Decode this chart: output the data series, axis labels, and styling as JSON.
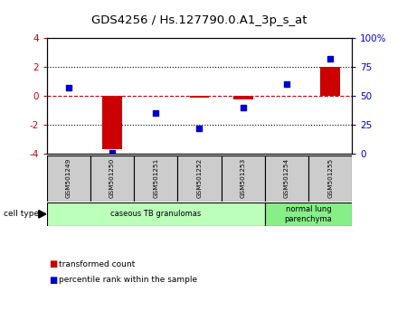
{
  "title": "GDS4256 / Hs.127790.0.A1_3p_s_at",
  "samples": [
    "GSM501249",
    "GSM501250",
    "GSM501251",
    "GSM501252",
    "GSM501253",
    "GSM501254",
    "GSM501255"
  ],
  "transformed_count": [
    0.04,
    -3.7,
    0.0,
    -0.12,
    -0.22,
    0.0,
    2.0
  ],
  "percentile_rank": [
    57,
    1,
    35,
    22,
    40,
    60,
    82
  ],
  "ylim_left": [
    -4,
    4
  ],
  "ylim_right": [
    0,
    100
  ],
  "cell_type_groups": [
    {
      "label": "caseous TB granulomas",
      "start": 0,
      "end": 4,
      "color": "#bbffbb"
    },
    {
      "label": "normal lung\nparenchyma",
      "start": 5,
      "end": 6,
      "color": "#88ee88"
    }
  ],
  "bar_color": "#cc0000",
  "dot_color": "#0000cc",
  "right_axis_color": "#0000cc",
  "left_axis_color": "#cc0000",
  "bg_color": "#ffffff",
  "sample_box_color": "#cccccc",
  "legend_items": [
    {
      "color": "#cc0000",
      "label": "transformed count"
    },
    {
      "color": "#0000cc",
      "label": "percentile rank within the sample"
    }
  ]
}
